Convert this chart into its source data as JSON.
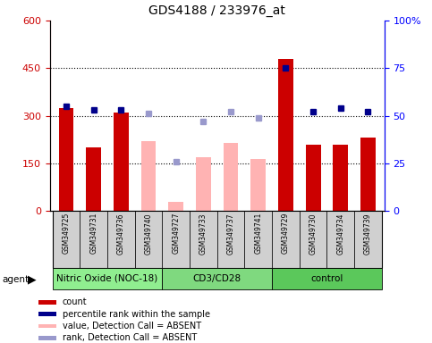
{
  "title": "GDS4188 / 233976_at",
  "samples": [
    "GSM349725",
    "GSM349731",
    "GSM349736",
    "GSM349740",
    "GSM349727",
    "GSM349733",
    "GSM349737",
    "GSM349741",
    "GSM349729",
    "GSM349730",
    "GSM349734",
    "GSM349739"
  ],
  "groups": [
    {
      "label": "Nitric Oxide (NOC-18)",
      "start": 0,
      "end": 4,
      "color": "#90EE90"
    },
    {
      "label": "CD3/CD28",
      "start": 4,
      "end": 8,
      "color": "#7FD97F"
    },
    {
      "label": "control",
      "start": 8,
      "end": 12,
      "color": "#5BC85B"
    }
  ],
  "bar_values": [
    325,
    200,
    310,
    null,
    null,
    null,
    null,
    null,
    480,
    210,
    210,
    230
  ],
  "bar_absent_values": [
    null,
    null,
    null,
    220,
    30,
    170,
    215,
    165,
    null,
    null,
    null,
    null
  ],
  "pct_present": [
    55,
    53,
    53,
    null,
    null,
    null,
    null,
    null,
    75,
    52,
    54,
    52
  ],
  "pct_absent": [
    null,
    null,
    null,
    51,
    26,
    47,
    52,
    49,
    null,
    null,
    null,
    null
  ],
  "left_ylim": [
    0,
    600
  ],
  "right_ylim": [
    0,
    100
  ],
  "left_yticks": [
    0,
    150,
    300,
    450,
    600
  ],
  "right_yticks": [
    0,
    25,
    50,
    75,
    100
  ],
  "bar_color": "#cc0000",
  "bar_absent_color": "#ffb3b3",
  "dot_present_color": "#00008b",
  "dot_absent_color": "#9999cc",
  "legend_items": [
    {
      "color": "#cc0000",
      "label": "count"
    },
    {
      "color": "#00008b",
      "label": "percentile rank within the sample"
    },
    {
      "color": "#ffb3b3",
      "label": "value, Detection Call = ABSENT"
    },
    {
      "color": "#9999cc",
      "label": "rank, Detection Call = ABSENT"
    }
  ]
}
